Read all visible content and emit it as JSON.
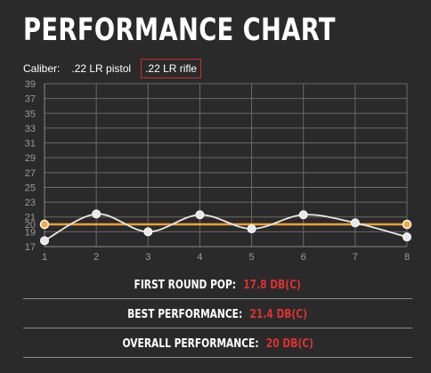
{
  "title": "PERFORMANCE CHART",
  "caliber": {
    "label": "Caliber:",
    "options": [
      ".22 LR pistol",
      ".22 LR rifle"
    ],
    "selected": ".22 LR rifle"
  },
  "chart_data": {
    "type": "line",
    "x": [
      1,
      2,
      3,
      4,
      5,
      6,
      7,
      8
    ],
    "ylim": [
      17,
      39
    ],
    "y_ticks": [
      17,
      19,
      20,
      21,
      23,
      25,
      27,
      29,
      31,
      33,
      35,
      37,
      39
    ],
    "grid": true,
    "series": [
      {
        "values": [
          17.8,
          21.4,
          19.0,
          21.3,
          19.4,
          21.3,
          20.2,
          18.3
        ],
        "color": "#e8e8e8"
      },
      {
        "values": [
          20,
          20,
          20,
          20,
          20,
          20,
          20,
          20
        ],
        "color": "#f0a030"
      }
    ]
  },
  "stats": [
    {
      "label": "FIRST ROUND POP:",
      "value": "17.8 DB(C)"
    },
    {
      "label": "BEST PERFORMANCE:",
      "value": "21.4 DB(C)"
    },
    {
      "label": "OVERALL PERFORMANCE:",
      "value": "20 DB(C)"
    }
  ],
  "colors": {
    "background": "#2a2a2a",
    "accent": "#e03030",
    "average_line": "#f0a030"
  }
}
